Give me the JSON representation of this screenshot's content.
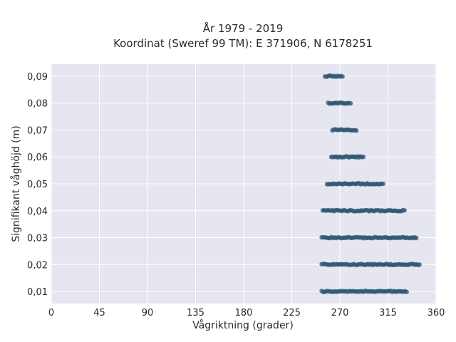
{
  "chart_data": {
    "type": "scatter",
    "title_lines": [
      "År 1979 - 2019",
      "Koordinat (Sweref 99 TM): E 371906, N 6178251"
    ],
    "xlabel": "Vågriktning (grader)",
    "ylabel": "Signifikant våghöjd (m)",
    "xlim": [
      0,
      360
    ],
    "ylim": [
      0.0055,
      0.0945
    ],
    "x_ticks": [
      0,
      45,
      90,
      135,
      180,
      225,
      270,
      315,
      360
    ],
    "x_tick_labels": [
      "0",
      "45",
      "90",
      "135",
      "180",
      "225",
      "270",
      "315",
      "360"
    ],
    "y_ticks": [
      0.01,
      0.02,
      0.03,
      0.04,
      0.05,
      0.06,
      0.07,
      0.08,
      0.09
    ],
    "y_tick_labels": [
      "0,01",
      "0,02",
      "0,03",
      "0,04",
      "0,05",
      "0,06",
      "0,07",
      "0,08",
      "0,09"
    ],
    "grid": true,
    "marker_color": "#2e5672",
    "background_color": "#e5e6ef",
    "bands": [
      {
        "y": 0.01,
        "x_min": 253,
        "x_max": 333
      },
      {
        "y": 0.02,
        "x_min": 253,
        "x_max": 345
      },
      {
        "y": 0.03,
        "x_min": 253,
        "x_max": 342
      },
      {
        "y": 0.04,
        "x_min": 254,
        "x_max": 331
      },
      {
        "y": 0.05,
        "x_min": 258,
        "x_max": 311
      },
      {
        "y": 0.06,
        "x_min": 262,
        "x_max": 293
      },
      {
        "y": 0.07,
        "x_min": 263,
        "x_max": 286
      },
      {
        "y": 0.08,
        "x_min": 259,
        "x_max": 281
      },
      {
        "y": 0.09,
        "x_min": 256,
        "x_max": 273
      }
    ]
  }
}
